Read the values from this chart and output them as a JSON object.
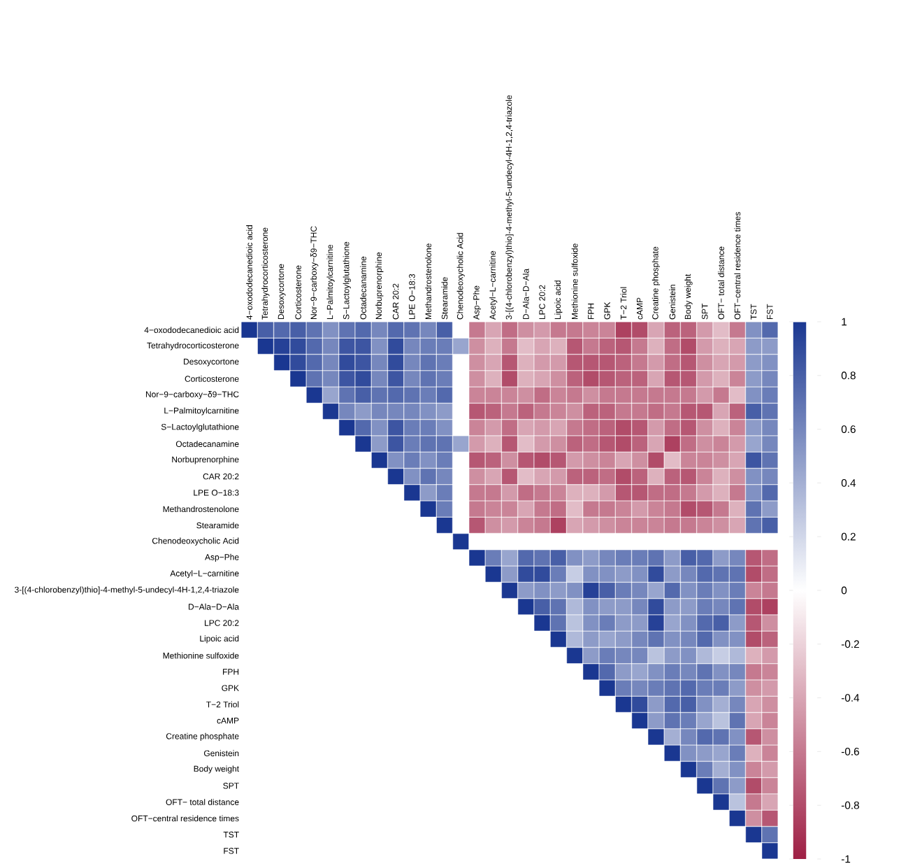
{
  "chart_data": {
    "type": "heatmap",
    "categories": [
      "4−oxododecanedioic acid",
      "Tetrahydrocorticosterone",
      "Desoxycortone",
      "Corticosterone",
      "Nor−9−carboxy−δ9−THC",
      "L−Palmitoylcarnitine",
      "S−Lactoylglutathione",
      "Octadecanamine",
      "Norbuprenorphine",
      "CAR 20:2",
      "LPE O−18:3",
      "Methandrostenolone",
      "Stearamide",
      "Chenodeoxycholic Acid",
      "Asp−Phe",
      "Acetyl−L−carnitine",
      "3-[(4-chlorobenzyl)thio]-4-methyl-5-undecyl-4H-1,2,4-triazole",
      "D−Ala−D−Ala",
      "LPC 20:2",
      "Lipoic acid",
      "Methionine sulfoxide",
      "FPH",
      "GPK",
      "T−2 Triol",
      "cAMP",
      "Creatine phosphate",
      "Genistein",
      "Body weight",
      "SPT",
      "OFT− total distance",
      "OFT−central residence times",
      "TST",
      "FST"
    ],
    "y_categories": [
      "4−oxododecanedioic acid",
      "Tetrahydrocorticosterone",
      "Desoxycortone",
      "Corticosterone",
      "Nor−9−carboxy−δ9−THC",
      "L−Palmitoylcarnitine",
      "S−Lactoylglutathione",
      "Octadecanamine",
      "Norbuprenorphine",
      "CAR 20:2",
      "LPE O−18:3",
      "Methandrostenolone",
      "Stearamide",
      "Chenodeoxycholic Acid",
      "Asp−Phe",
      "Acetyl−L−carnitine",
      "3-[(4-chlorobenzyl)thio]-4-methyl-5-undecyl-4H-1,2,4-triazole",
      "D−Ala−D−Ala",
      "LPC 20:2",
      "Lipoic acid",
      "Methionine sulfoxide",
      "FPH",
      "GPK",
      "T−2 Triol",
      "cAMP",
      "Creatine phosphate",
      "Genistein",
      "Body weight",
      "SPT",
      "OFT− total distance",
      "OFT−central residence times",
      "TST",
      "FST"
    ],
    "cells": [
      [
        1,
        0.8,
        0.75,
        0.8,
        0.7,
        0.55,
        0.7,
        0.75,
        0.6,
        0.75,
        0.7,
        0.6,
        0.8,
        null,
        -0.6,
        -0.4,
        -0.65,
        -0.5,
        -0.45,
        -0.6,
        -0.6,
        -0.55,
        -0.55,
        -0.85,
        -0.8,
        -0.4,
        -0.7,
        -0.7,
        -0.45,
        -0.3,
        -0.6,
        0.55,
        0.75
      ],
      [
        null,
        1,
        0.95,
        0.9,
        0.75,
        0.6,
        0.85,
        0.85,
        0.55,
        0.9,
        0.6,
        0.65,
        0.65,
        0.45,
        -0.5,
        -0.35,
        -0.6,
        -0.3,
        -0.4,
        -0.35,
        -0.75,
        -0.6,
        -0.7,
        -0.75,
        -0.6,
        -0.35,
        -0.65,
        -0.8,
        -0.45,
        -0.35,
        -0.4,
        0.5,
        0.5
      ],
      [
        null,
        null,
        1,
        0.9,
        0.75,
        0.6,
        0.9,
        0.85,
        0.6,
        0.9,
        0.6,
        0.7,
        0.65,
        null,
        -0.5,
        -0.4,
        -0.75,
        -0.35,
        -0.45,
        -0.45,
        -0.75,
        -0.75,
        -0.75,
        -0.7,
        -0.6,
        -0.45,
        -0.65,
        -0.75,
        -0.5,
        -0.4,
        -0.45,
        0.5,
        0.55
      ],
      [
        null,
        null,
        null,
        1,
        0.7,
        0.6,
        0.85,
        0.9,
        0.6,
        0.85,
        0.6,
        0.7,
        0.65,
        null,
        -0.5,
        -0.35,
        -0.8,
        -0.35,
        -0.4,
        -0.5,
        -0.7,
        -0.8,
        -0.75,
        -0.7,
        -0.7,
        -0.4,
        -0.75,
        -0.75,
        -0.45,
        -0.35,
        -0.55,
        0.5,
        0.6
      ],
      [
        null,
        null,
        null,
        null,
        1,
        0.45,
        0.7,
        0.8,
        0.7,
        0.75,
        0.7,
        0.65,
        0.75,
        null,
        -0.55,
        -0.55,
        -0.55,
        -0.5,
        -0.65,
        -0.55,
        -0.6,
        -0.5,
        -0.6,
        -0.6,
        -0.6,
        -0.6,
        -0.6,
        -0.6,
        -0.45,
        -0.6,
        -0.3,
        0.55,
        0.65
      ],
      [
        null,
        null,
        null,
        null,
        null,
        1,
        0.6,
        0.5,
        0.6,
        0.6,
        0.6,
        0.55,
        0.5,
        null,
        -0.75,
        -0.7,
        -0.6,
        -0.7,
        -0.6,
        -0.55,
        -0.5,
        -0.7,
        -0.7,
        -0.6,
        -0.6,
        -0.65,
        -0.6,
        -0.75,
        -0.75,
        -0.4,
        -0.7,
        0.8,
        0.7
      ],
      [
        null,
        null,
        null,
        null,
        null,
        null,
        1,
        0.75,
        0.55,
        0.85,
        0.65,
        0.65,
        0.55,
        null,
        -0.55,
        -0.45,
        -0.65,
        -0.4,
        -0.45,
        -0.4,
        -0.6,
        -0.65,
        -0.7,
        -0.8,
        -0.75,
        -0.45,
        -0.65,
        -0.75,
        -0.5,
        -0.35,
        -0.55,
        0.5,
        0.6
      ],
      [
        null,
        null,
        null,
        null,
        null,
        null,
        null,
        1,
        0.5,
        0.85,
        0.65,
        0.7,
        0.7,
        0.45,
        -0.45,
        -0.35,
        -0.75,
        -0.3,
        -0.45,
        -0.5,
        -0.7,
        -0.65,
        -0.75,
        -0.8,
        -0.7,
        -0.4,
        -0.85,
        -0.65,
        -0.5,
        -0.55,
        -0.45,
        0.45,
        0.6
      ],
      [
        null,
        null,
        null,
        null,
        null,
        null,
        null,
        null,
        1,
        0.55,
        0.65,
        0.55,
        0.65,
        null,
        -0.75,
        -0.7,
        -0.5,
        -0.75,
        -0.8,
        -0.75,
        -0.45,
        -0.5,
        -0.55,
        -0.4,
        -0.5,
        -0.8,
        -0.3,
        -0.55,
        -0.55,
        -0.5,
        -0.4,
        0.85,
        0.7
      ],
      [
        null,
        null,
        null,
        null,
        null,
        null,
        null,
        null,
        null,
        1,
        0.55,
        0.7,
        0.6,
        null,
        -0.5,
        -0.4,
        -0.75,
        -0.3,
        -0.4,
        -0.45,
        -0.7,
        -0.7,
        -0.65,
        -0.8,
        -0.7,
        -0.35,
        -0.7,
        -0.75,
        -0.55,
        -0.35,
        -0.5,
        0.55,
        0.6
      ],
      [
        null,
        null,
        null,
        null,
        null,
        null,
        null,
        null,
        null,
        null,
        1,
        0.5,
        0.65,
        null,
        -0.6,
        -0.6,
        -0.45,
        -0.65,
        -0.6,
        -0.55,
        -0.35,
        -0.35,
        -0.45,
        -0.75,
        -0.75,
        -0.65,
        -0.65,
        -0.6,
        -0.45,
        -0.35,
        -0.6,
        0.55,
        0.75
      ],
      [
        null,
        null,
        null,
        null,
        null,
        null,
        null,
        null,
        null,
        null,
        null,
        1,
        0.65,
        null,
        -0.6,
        -0.55,
        -0.55,
        -0.4,
        -0.6,
        -0.65,
        -0.3,
        -0.6,
        -0.6,
        -0.55,
        -0.45,
        -0.55,
        -0.6,
        -0.8,
        -0.75,
        -0.6,
        -0.35,
        0.7,
        0.5
      ],
      [
        null,
        null,
        null,
        null,
        null,
        null,
        null,
        null,
        null,
        null,
        null,
        null,
        1,
        null,
        -0.75,
        -0.5,
        -0.45,
        -0.55,
        -0.6,
        -0.85,
        -0.4,
        -0.45,
        -0.5,
        -0.55,
        -0.55,
        -0.55,
        -0.6,
        -0.6,
        -0.55,
        -0.5,
        -0.4,
        0.7,
        0.8
      ],
      [
        null,
        null,
        null,
        null,
        null,
        null,
        null,
        null,
        null,
        null,
        null,
        null,
        null,
        1,
        null,
        null,
        null,
        null,
        null,
        null,
        null,
        null,
        null,
        null,
        null,
        null,
        null,
        null,
        null,
        null,
        null,
        null,
        null
      ],
      [
        null,
        null,
        null,
        null,
        null,
        null,
        null,
        null,
        null,
        null,
        null,
        null,
        null,
        null,
        1,
        0.65,
        0.45,
        0.75,
        0.7,
        0.8,
        0.55,
        0.5,
        0.6,
        0.65,
        0.65,
        0.7,
        0.5,
        0.8,
        0.75,
        0.5,
        0.6,
        -0.75,
        -0.65
      ],
      [
        null,
        null,
        null,
        null,
        null,
        null,
        null,
        null,
        null,
        null,
        null,
        null,
        null,
        null,
        null,
        1,
        0.5,
        0.9,
        0.9,
        0.65,
        0.25,
        0.55,
        0.55,
        0.5,
        0.55,
        0.9,
        0.5,
        0.6,
        0.75,
        0.7,
        0.7,
        -0.8,
        -0.65
      ],
      [
        null,
        null,
        null,
        null,
        null,
        null,
        null,
        null,
        null,
        null,
        null,
        null,
        null,
        null,
        null,
        null,
        1,
        0.5,
        0.55,
        0.5,
        0.55,
        0.95,
        0.8,
        0.65,
        0.6,
        0.45,
        0.75,
        0.55,
        0.65,
        0.55,
        0.65,
        -0.55,
        -0.6
      ],
      [
        null,
        null,
        null,
        null,
        null,
        null,
        null,
        null,
        null,
        null,
        null,
        null,
        null,
        null,
        null,
        null,
        null,
        1,
        0.8,
        0.7,
        0.35,
        0.55,
        0.5,
        0.5,
        0.6,
        0.9,
        0.5,
        0.5,
        0.65,
        0.6,
        0.7,
        -0.8,
        -0.85
      ],
      [
        null,
        null,
        null,
        null,
        null,
        null,
        null,
        null,
        null,
        null,
        null,
        null,
        null,
        null,
        null,
        null,
        null,
        null,
        1,
        0.7,
        0.3,
        0.55,
        0.65,
        0.5,
        0.5,
        0.95,
        0.45,
        0.55,
        0.75,
        0.8,
        0.5,
        -0.75,
        -0.5
      ],
      [
        null,
        null,
        null,
        null,
        null,
        null,
        null,
        null,
        null,
        null,
        null,
        null,
        null,
        null,
        null,
        null,
        null,
        null,
        null,
        1,
        0.35,
        0.5,
        0.45,
        0.5,
        0.6,
        0.7,
        0.55,
        0.6,
        0.75,
        0.55,
        0.55,
        -0.8,
        -0.7
      ],
      [
        null,
        null,
        null,
        null,
        null,
        null,
        null,
        null,
        null,
        null,
        null,
        null,
        null,
        null,
        null,
        null,
        null,
        null,
        null,
        null,
        1,
        0.5,
        0.65,
        0.6,
        0.6,
        0.3,
        0.5,
        0.55,
        0.35,
        0.25,
        0.35,
        -0.35,
        -0.45
      ],
      [
        null,
        null,
        null,
        null,
        null,
        null,
        null,
        null,
        null,
        null,
        null,
        null,
        null,
        null,
        null,
        null,
        null,
        null,
        null,
        null,
        null,
        1,
        0.75,
        0.5,
        0.45,
        0.55,
        0.65,
        0.6,
        0.7,
        0.55,
        0.6,
        -0.6,
        -0.55
      ],
      [
        null,
        null,
        null,
        null,
        null,
        null,
        null,
        null,
        null,
        null,
        null,
        null,
        null,
        null,
        null,
        null,
        null,
        null,
        null,
        null,
        null,
        null,
        1,
        0.65,
        0.6,
        0.65,
        0.7,
        0.75,
        0.65,
        0.65,
        0.5,
        -0.5,
        -0.45
      ],
      [
        null,
        null,
        null,
        null,
        null,
        null,
        null,
        null,
        null,
        null,
        null,
        null,
        null,
        null,
        null,
        null,
        null,
        null,
        null,
        null,
        null,
        null,
        null,
        1,
        0.9,
        0.5,
        0.75,
        0.8,
        0.55,
        0.4,
        0.6,
        -0.4,
        -0.5
      ],
      [
        null,
        null,
        null,
        null,
        null,
        null,
        null,
        null,
        null,
        null,
        null,
        null,
        null,
        null,
        null,
        null,
        null,
        null,
        null,
        null,
        null,
        null,
        null,
        null,
        1,
        0.5,
        0.7,
        0.65,
        0.45,
        0.3,
        0.7,
        -0.4,
        -0.55
      ],
      [
        null,
        null,
        null,
        null,
        null,
        null,
        null,
        null,
        null,
        null,
        null,
        null,
        null,
        null,
        null,
        null,
        null,
        null,
        null,
        null,
        null,
        null,
        null,
        null,
        null,
        1,
        0.4,
        0.6,
        0.75,
        0.7,
        0.55,
        -0.75,
        -0.5
      ],
      [
        null,
        null,
        null,
        null,
        null,
        null,
        null,
        null,
        null,
        null,
        null,
        null,
        null,
        null,
        null,
        null,
        null,
        null,
        null,
        null,
        null,
        null,
        null,
        null,
        null,
        null,
        1,
        0.55,
        0.5,
        0.45,
        0.65,
        -0.35,
        -0.55
      ],
      [
        null,
        null,
        null,
        null,
        null,
        null,
        null,
        null,
        null,
        null,
        null,
        null,
        null,
        null,
        null,
        null,
        null,
        null,
        null,
        null,
        null,
        null,
        null,
        null,
        null,
        null,
        null,
        1,
        0.65,
        0.4,
        0.55,
        -0.55,
        -0.45
      ],
      [
        null,
        null,
        null,
        null,
        null,
        null,
        null,
        null,
        null,
        null,
        null,
        null,
        null,
        null,
        null,
        null,
        null,
        null,
        null,
        null,
        null,
        null,
        null,
        null,
        null,
        null,
        null,
        null,
        1,
        0.7,
        0.5,
        -0.8,
        -0.55
      ],
      [
        null,
        null,
        null,
        null,
        null,
        null,
        null,
        null,
        null,
        null,
        null,
        null,
        null,
        null,
        null,
        null,
        null,
        null,
        null,
        null,
        null,
        null,
        null,
        null,
        null,
        null,
        null,
        null,
        null,
        1,
        0.3,
        -0.6,
        -0.4
      ],
      [
        null,
        null,
        null,
        null,
        null,
        null,
        null,
        null,
        null,
        null,
        null,
        null,
        null,
        null,
        null,
        null,
        null,
        null,
        null,
        null,
        null,
        null,
        null,
        null,
        null,
        null,
        null,
        null,
        null,
        null,
        1,
        -0.5,
        -0.75
      ],
      [
        null,
        null,
        null,
        null,
        null,
        null,
        null,
        null,
        null,
        null,
        null,
        null,
        null,
        null,
        null,
        null,
        null,
        null,
        null,
        null,
        null,
        null,
        null,
        null,
        null,
        null,
        null,
        null,
        null,
        null,
        null,
        1,
        0.7
      ],
      [
        null,
        null,
        null,
        null,
        null,
        null,
        null,
        null,
        null,
        null,
        null,
        null,
        null,
        null,
        null,
        null,
        null,
        null,
        null,
        null,
        null,
        null,
        null,
        null,
        null,
        null,
        null,
        null,
        null,
        null,
        null,
        null,
        1
      ]
    ],
    "clim": [
      -1,
      1
    ],
    "cticks": [
      -1,
      -0.8,
      -0.6,
      -0.4,
      -0.2,
      0,
      0.2,
      0.4,
      0.6,
      0.8,
      1
    ]
  }
}
